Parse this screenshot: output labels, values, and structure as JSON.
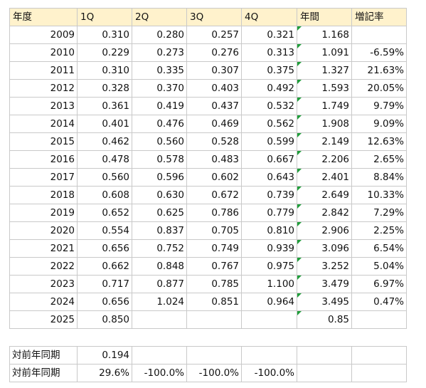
{
  "header": [
    "年度",
    "1Q",
    "2Q",
    "3Q",
    "4Q",
    "年間",
    "増記率"
  ],
  "rows": [
    [
      "2009",
      "0.310",
      "0.280",
      "0.257",
      "0.321",
      "1.168",
      ""
    ],
    [
      "2010",
      "0.229",
      "0.273",
      "0.276",
      "0.313",
      "1.091",
      "-6.59%"
    ],
    [
      "2011",
      "0.310",
      "0.335",
      "0.307",
      "0.375",
      "1.327",
      "21.63%"
    ],
    [
      "2012",
      "0.328",
      "0.370",
      "0.403",
      "0.492",
      "1.593",
      "20.05%"
    ],
    [
      "2013",
      "0.361",
      "0.419",
      "0.437",
      "0.532",
      "1.749",
      "9.79%"
    ],
    [
      "2014",
      "0.401",
      "0.476",
      "0.469",
      "0.562",
      "1.908",
      "9.09%"
    ],
    [
      "2015",
      "0.462",
      "0.560",
      "0.528",
      "0.599",
      "2.149",
      "12.63%"
    ],
    [
      "2016",
      "0.478",
      "0.578",
      "0.483",
      "0.667",
      "2.206",
      "2.65%"
    ],
    [
      "2017",
      "0.560",
      "0.596",
      "0.602",
      "0.643",
      "2.401",
      "8.84%"
    ],
    [
      "2018",
      "0.608",
      "0.630",
      "0.672",
      "0.739",
      "2.649",
      "10.33%"
    ],
    [
      "2019",
      "0.652",
      "0.625",
      "0.786",
      "0.779",
      "2.842",
      "7.29%"
    ],
    [
      "2020",
      "0.554",
      "0.837",
      "0.705",
      "0.810",
      "2.906",
      "2.25%"
    ],
    [
      "2021",
      "0.656",
      "0.752",
      "0.749",
      "0.939",
      "3.096",
      "6.54%"
    ],
    [
      "2022",
      "0.662",
      "0.848",
      "0.767",
      "0.975",
      "3.252",
      "5.04%"
    ],
    [
      "2023",
      "0.717",
      "0.877",
      "0.785",
      "1.100",
      "3.479",
      "6.97%"
    ],
    [
      "2024",
      "0.656",
      "1.024",
      "0.851",
      "0.964",
      "3.495",
      "0.47%"
    ],
    [
      "2025",
      "0.850",
      "",
      "",
      "",
      "0.85",
      ""
    ]
  ],
  "summary": [
    [
      "対前年同期",
      "0.194",
      "",
      "",
      "",
      "",
      ""
    ],
    [
      "対前年同期",
      "29.6%",
      "-100.0%",
      "-100.0%",
      "-100.0%",
      "",
      ""
    ]
  ],
  "flag_color": "#1f9e3a",
  "header_color": "#fff2cc"
}
